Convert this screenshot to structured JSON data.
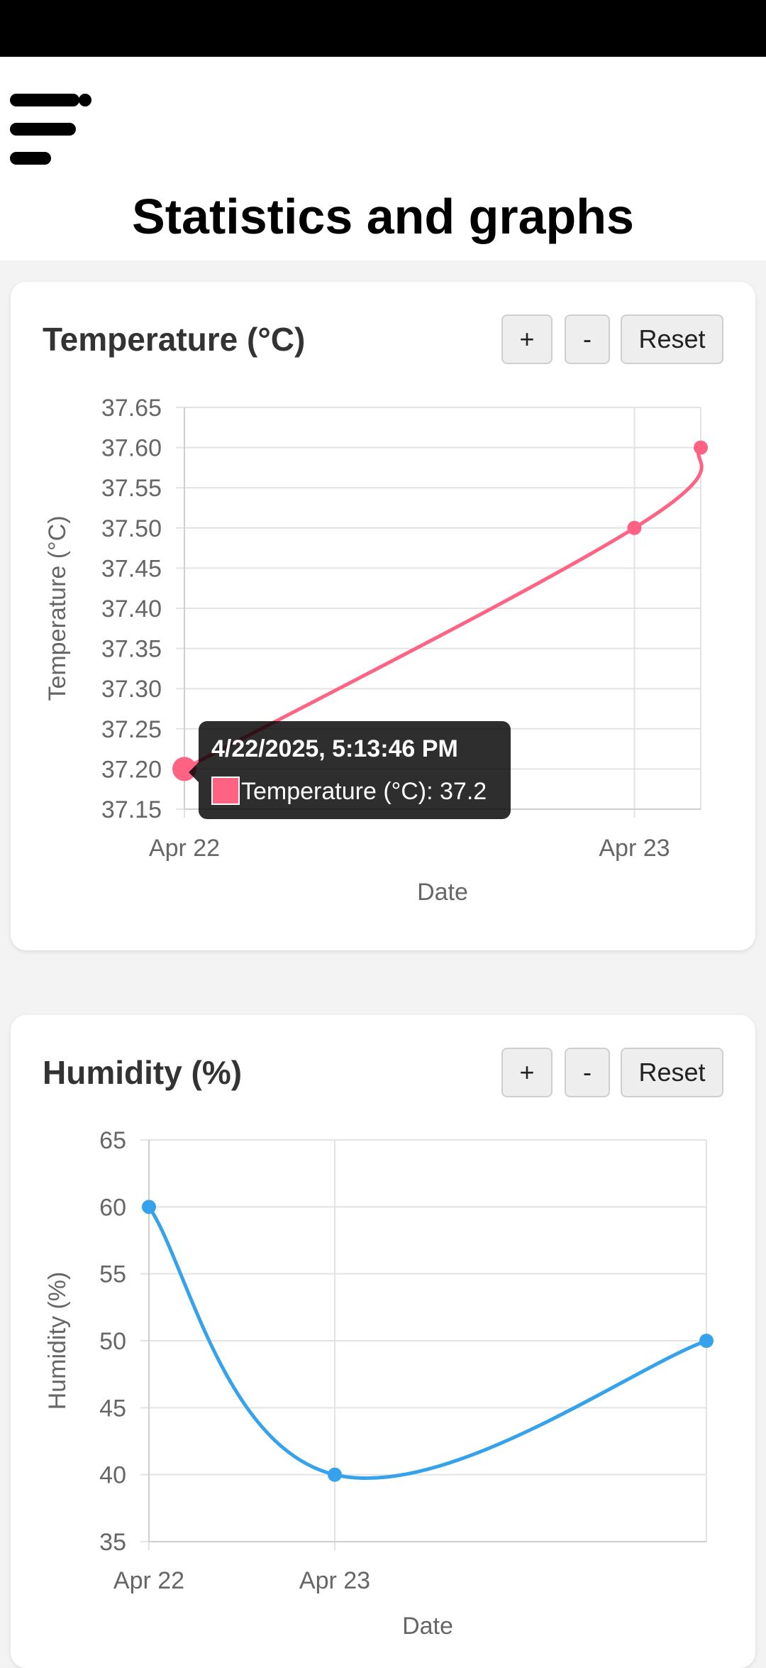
{
  "page": {
    "title": "Statistics and graphs",
    "menu_icon": "hamburger-menu-icon"
  },
  "controls": {
    "zoom_in_label": "+",
    "zoom_out_label": "-",
    "reset_label": "Reset"
  },
  "temperature_card": {
    "title": "Temperature (°C)",
    "tooltip": {
      "title": "4/22/2025, 5:13:46 PM",
      "body": "Temperature (°C): 37.2"
    }
  },
  "humidity_card": {
    "title": "Humidity (%)"
  },
  "colors": {
    "temperature": "#ff6384",
    "humidity": "#36a2eb"
  },
  "chart_data": [
    {
      "type": "line",
      "series": [
        {
          "name": "Temperature (°C)",
          "points": [
            [
              "2025-04-22 17:13",
              37.2
            ],
            [
              "2025-04-23 00:00",
              37.5
            ],
            [
              "2025-04-23 01:00",
              37.6
            ]
          ]
        }
      ],
      "x_ticks": [
        "Apr 22",
        "Apr 23"
      ],
      "y_ticks": [
        "37.15",
        "37.20",
        "37.25",
        "37.30",
        "37.35",
        "37.40",
        "37.45",
        "37.50",
        "37.55",
        "37.60",
        "37.65"
      ],
      "xlabel": "Date",
      "ylabel": "Temperature (°C)",
      "ylim": [
        37.15,
        37.65
      ],
      "grid": true
    },
    {
      "type": "line",
      "series": [
        {
          "name": "Humidity (%)",
          "points": [
            [
              "2025-04-22 00:00",
              60
            ],
            [
              "2025-04-23 00:00",
              40
            ],
            [
              "2025-04-25 00:00",
              50
            ]
          ]
        }
      ],
      "x_ticks": [
        "Apr 22",
        "Apr 23"
      ],
      "y_ticks": [
        "35",
        "40",
        "45",
        "50",
        "55",
        "60",
        "65"
      ],
      "xlabel": "Date",
      "ylabel": "Humidity (%)",
      "ylim": [
        35,
        65
      ],
      "grid": true
    }
  ]
}
